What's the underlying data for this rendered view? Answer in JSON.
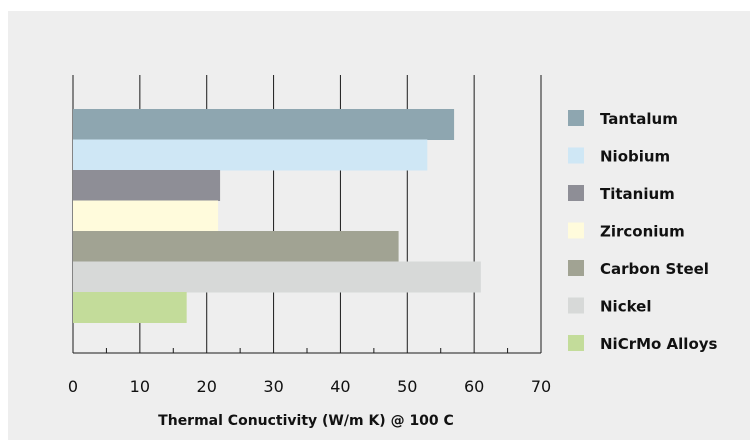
{
  "chart_data": {
    "type": "bar",
    "orientation": "horizontal",
    "categories": [
      "Tantalum",
      "Niobium",
      "Titanium",
      "Zirconium",
      "Carbon Steel",
      "Nickel",
      "NiCrMo Alloys"
    ],
    "values": [
      57,
      53,
      22,
      21.7,
      48.7,
      61,
      17
    ],
    "colors": [
      "#8ea6b0",
      "#cfe7f5",
      "#8e8e96",
      "#fffbdc",
      "#a1a393",
      "#d7d9d8",
      "#c3dc9a"
    ],
    "xlabel": "Thermal Conuctivity (W/m K) @ 100 C",
    "xlim": [
      0,
      70
    ],
    "xticks": [
      0,
      10,
      20,
      30,
      40,
      50,
      60,
      70
    ],
    "grid": "vertical",
    "legend_position": "right"
  }
}
